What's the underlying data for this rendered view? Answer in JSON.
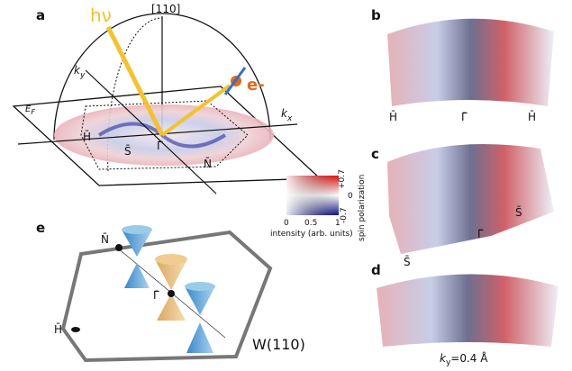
{
  "panels": {
    "a": {
      "label": "a",
      "direction": "[110]",
      "photon": "hν",
      "electron": "e-",
      "ky": "k",
      "ky_sub": "y",
      "kx": "k",
      "kx_sub": "x",
      "fermi": "E",
      "fermi_sub": "F",
      "points": [
        "H̄",
        "S̄",
        "Γ̄",
        "N̄"
      ]
    },
    "colorbar": {
      "spin_ticks": [
        "+0.7",
        "0",
        "-0.7"
      ],
      "spin_label": "spin polarization",
      "intensity_ticks": [
        "0",
        "0.5",
        "1"
      ],
      "intensity_label": "intensity (arb. units)"
    },
    "b": {
      "label": "b",
      "points": [
        "H̄",
        "Γ̄",
        "H̄"
      ]
    },
    "c": {
      "label": "c",
      "points": [
        "S̄",
        "Γ̄",
        "S̄"
      ]
    },
    "d": {
      "label": "d",
      "caption_k": "k",
      "caption_sub": "y",
      "caption_rest": "=0.4 Å"
    },
    "e": {
      "label": "e",
      "points": [
        "N̄",
        "Γ̄",
        "H̄"
      ],
      "surface": "W(110)"
    }
  }
}
